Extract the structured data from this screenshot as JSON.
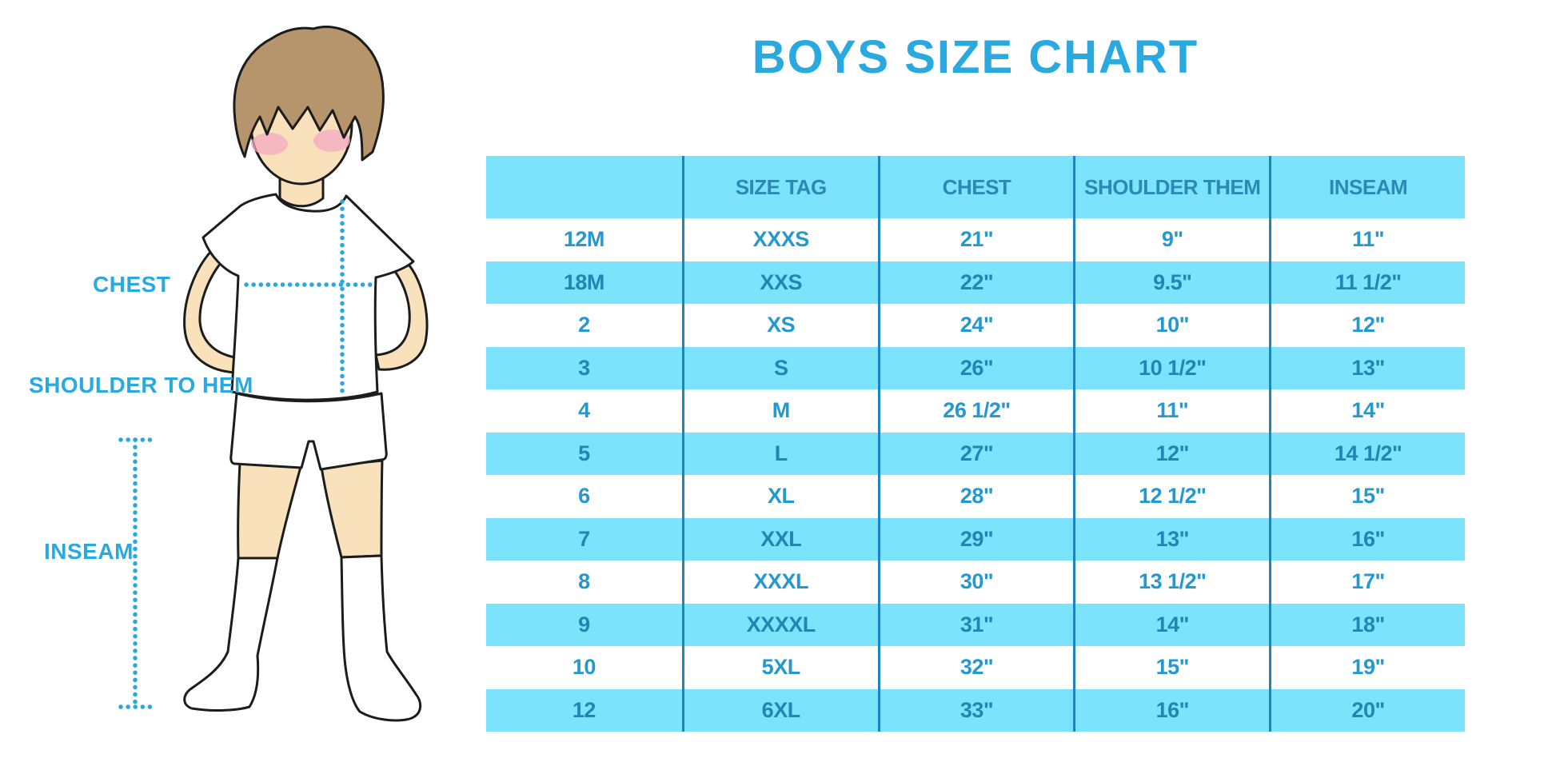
{
  "page_title": "BOYS SIZE CHART",
  "figure_labels": {
    "chest": "CHEST",
    "shoulder_to_hem": "SHOULDER TO HEM",
    "inseam": "INSEAM"
  },
  "colors": {
    "accent_blue": "#29A9E0",
    "band_cyan": "#7BE3FC",
    "divider_blue": "#1A85C0",
    "table_text_on_white": "#2498CF",
    "table_text_on_cyan": "#2186B4",
    "dotted_line_blue": "#2AA7E0",
    "skin": "#F9E2BB",
    "hair": "#B6956C",
    "cheek": "#F3A9C1",
    "outline": "#1C1C1C"
  },
  "chart_data": {
    "type": "table",
    "title": "BOYS SIZE CHART",
    "columns": [
      "",
      "SIZE TAG",
      "CHEST",
      "SHOULDER THEM",
      "INSEAM"
    ],
    "rows": [
      [
        "12M",
        "XXXS",
        "21\"",
        "9\"",
        "11\""
      ],
      [
        "18M",
        "XXS",
        "22\"",
        "9.5\"",
        "11 1/2\""
      ],
      [
        "2",
        "XS",
        "24\"",
        "10\"",
        "12\""
      ],
      [
        "3",
        "S",
        "26\"",
        "10 1/2\"",
        "13\""
      ],
      [
        "4",
        "M",
        "26 1/2\"",
        "11\"",
        "14\""
      ],
      [
        "5",
        "L",
        "27\"",
        "12\"",
        "14 1/2\""
      ],
      [
        "6",
        "XL",
        "28\"",
        "12 1/2\"",
        "15\""
      ],
      [
        "7",
        "XXL",
        "29\"",
        "13\"",
        "16\""
      ],
      [
        "8",
        "XXXL",
        "30\"",
        "13 1/2\"",
        "17\""
      ],
      [
        "9",
        "XXXXL",
        "31\"",
        "14\"",
        "18\""
      ],
      [
        "10",
        "5XL",
        "32\"",
        "15\"",
        "19\""
      ],
      [
        "12",
        "6XL",
        "33\"",
        "16\"",
        "20\""
      ]
    ],
    "striping": "header and even data rows highlighted cyan, others white"
  }
}
